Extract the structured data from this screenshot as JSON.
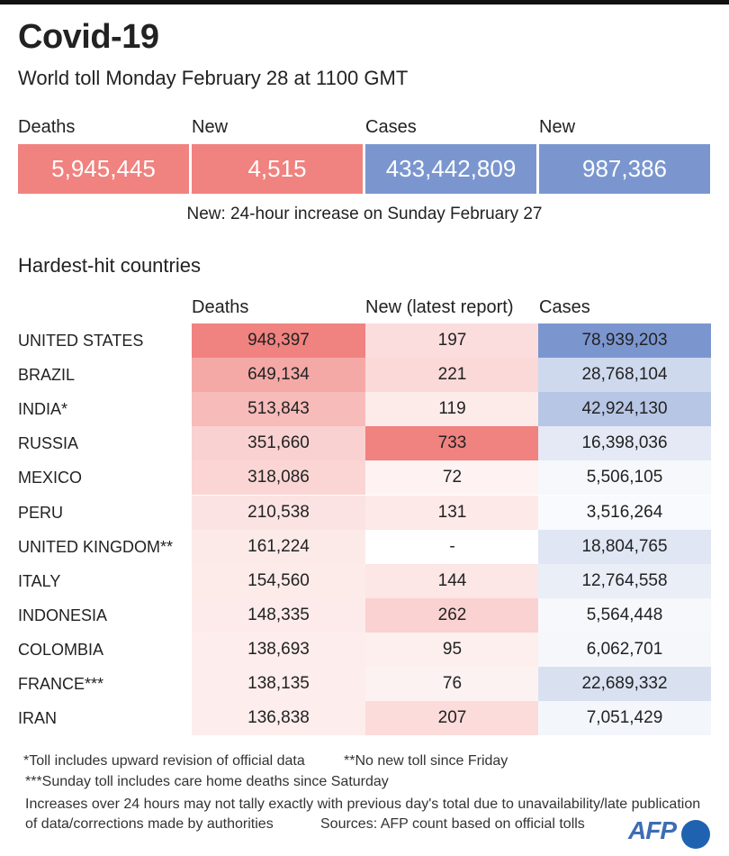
{
  "title": "Covid-19",
  "subtitle": "World toll Monday February 28 at 1100 GMT",
  "summary": [
    {
      "label": "Deaths",
      "value": "5,945,445",
      "color": "#f0827f"
    },
    {
      "label": "New",
      "value": "4,515",
      "color": "#f0827f"
    },
    {
      "label": "Cases",
      "value": "433,442,809",
      "color": "#7b96cf"
    },
    {
      "label": "New",
      "value": "987,386",
      "color": "#7b96cf"
    }
  ],
  "summary_note": "New: 24-hour increase on Sunday February 27",
  "section_title": "Hardest-hit countries",
  "chart_data": {
    "type": "table",
    "title": "Hardest-hit countries",
    "columns": [
      "Deaths",
      "New (latest report)",
      "Cases"
    ],
    "rows": [
      {
        "country": "UNITED STATES",
        "deaths": "948,397",
        "new": "197",
        "cases": "78,939,203"
      },
      {
        "country": "BRAZIL",
        "deaths": "649,134",
        "new": "221",
        "cases": "28,768,104"
      },
      {
        "country": "INDIA*",
        "deaths": "513,843",
        "new": "119",
        "cases": "42,924,130"
      },
      {
        "country": "RUSSIA",
        "deaths": "351,660",
        "new": "733",
        "cases": "16,398,036"
      },
      {
        "country": "MEXICO",
        "deaths": "318,086",
        "new": "72",
        "cases": "5,506,105"
      },
      {
        "country": "PERU",
        "deaths": "210,538",
        "new": "131",
        "cases": "3,516,264"
      },
      {
        "country": "UNITED KINGDOM**",
        "deaths": "161,224",
        "new": "-",
        "cases": "18,804,765"
      },
      {
        "country": "ITALY",
        "deaths": "154,560",
        "new": "144",
        "cases": "12,764,558"
      },
      {
        "country": "INDONESIA",
        "deaths": "148,335",
        "new": "262",
        "cases": "5,564,448"
      },
      {
        "country": "COLOMBIA",
        "deaths": "138,693",
        "new": "95",
        "cases": "6,062,701"
      },
      {
        "country": "FRANCE***",
        "deaths": "138,135",
        "new": "76",
        "cases": "22,689,332"
      },
      {
        "country": "IRAN",
        "deaths": "136,838",
        "new": "207",
        "cases": "7,051,429"
      }
    ],
    "colors": {
      "deaths": "#f0827f",
      "new": "#f0827f",
      "cases": "#7b96cf"
    }
  },
  "footnotes": {
    "f1": "*Toll includes upward revision of official data",
    "f2": "**No new toll since Friday",
    "f3": "***Sunday toll includes care home deaths since Saturday",
    "f4": "Increases over 24 hours may not tally exactly with previous day's total due to unavailability/late publication",
    "f5": "of data/corrections made by authorities",
    "sources": "Sources: AFP count based on official tolls"
  },
  "logo": "AFP"
}
